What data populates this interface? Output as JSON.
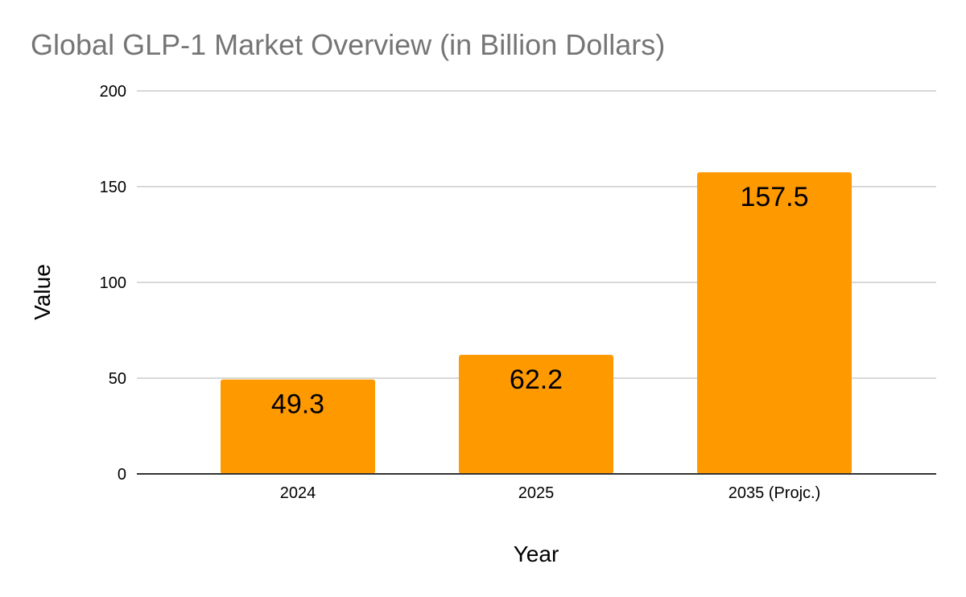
{
  "chart_data": {
    "type": "bar",
    "title": "Global GLP-1 Market Overview (in Billion Dollars)",
    "xlabel": "Year",
    "ylabel": "Value",
    "categories": [
      "2024",
      "2025",
      "2035 (Projc.)"
    ],
    "values": [
      49.3,
      62.2,
      157.5
    ],
    "data_labels": [
      "49.3",
      "62.2",
      "157.5"
    ],
    "ylim": [
      0,
      200
    ],
    "yticks": [
      0,
      50,
      100,
      150,
      200
    ],
    "ytick_labels": [
      "0",
      "50",
      "100",
      "150",
      "200"
    ],
    "grid": true,
    "legend": "none",
    "bar_color": "#ff9900"
  }
}
